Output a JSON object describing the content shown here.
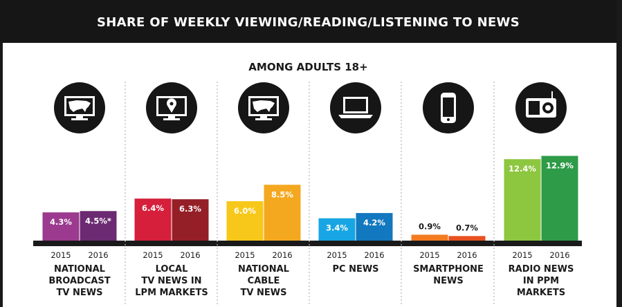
{
  "header": {
    "title": "SHARE OF WEEKLY VIEWING/READING/LISTENING TO NEWS",
    "subtitle": "AMONG ADULTS 18+"
  },
  "chart_data": {
    "type": "bar",
    "title": "SHARE OF WEEKLY VIEWING/READING/LISTENING TO NEWS",
    "subtitle": "AMONG ADULTS 18+",
    "x": [
      "2015",
      "2016"
    ],
    "grid": false,
    "groups": [
      {
        "label_lines": [
          "NATIONAL",
          "BROADCAST",
          "TV NEWS"
        ],
        "icon": "tv-usa-map-icon",
        "values": [
          4.3,
          4.5
        ],
        "labels": [
          "4.3%",
          "4.5%*"
        ],
        "colors": [
          "#9b3a8e",
          "#6c2a72"
        ]
      },
      {
        "label_lines": [
          "LOCAL",
          "TV NEWS IN",
          "LPM MARKETS"
        ],
        "icon": "tv-location-pin-icon",
        "values": [
          6.4,
          6.3
        ],
        "labels": [
          "6.4%",
          "6.3%"
        ],
        "colors": [
          "#d51f3b",
          "#951f27"
        ]
      },
      {
        "label_lines": [
          "NATIONAL",
          "CABLE",
          "TV NEWS"
        ],
        "icon": "tv-usa-map-icon",
        "values": [
          6.0,
          8.5
        ],
        "labels": [
          "6.0%",
          "8.5%"
        ],
        "colors": [
          "#f7c81a",
          "#f4a81f"
        ]
      },
      {
        "label_lines": [
          "PC NEWS"
        ],
        "icon": "laptop-icon",
        "values": [
          3.4,
          4.2
        ],
        "labels": [
          "3.4%",
          "4.2%"
        ],
        "colors": [
          "#17a6e3",
          "#1278bf"
        ]
      },
      {
        "label_lines": [
          "SMARTPHONE",
          "NEWS"
        ],
        "icon": "smartphone-icon",
        "values": [
          0.9,
          0.7
        ],
        "labels": [
          "0.9%",
          "0.7%"
        ],
        "colors": [
          "#f47b20",
          "#e8511f"
        ]
      },
      {
        "label_lines": [
          "RADIO NEWS",
          "IN PPM",
          "MARKETS"
        ],
        "icon": "radio-icon",
        "values": [
          12.4,
          12.9
        ],
        "labels": [
          "12.4%",
          "12.9%"
        ],
        "colors": [
          "#8dc63f",
          "#2e9b48"
        ]
      }
    ]
  }
}
